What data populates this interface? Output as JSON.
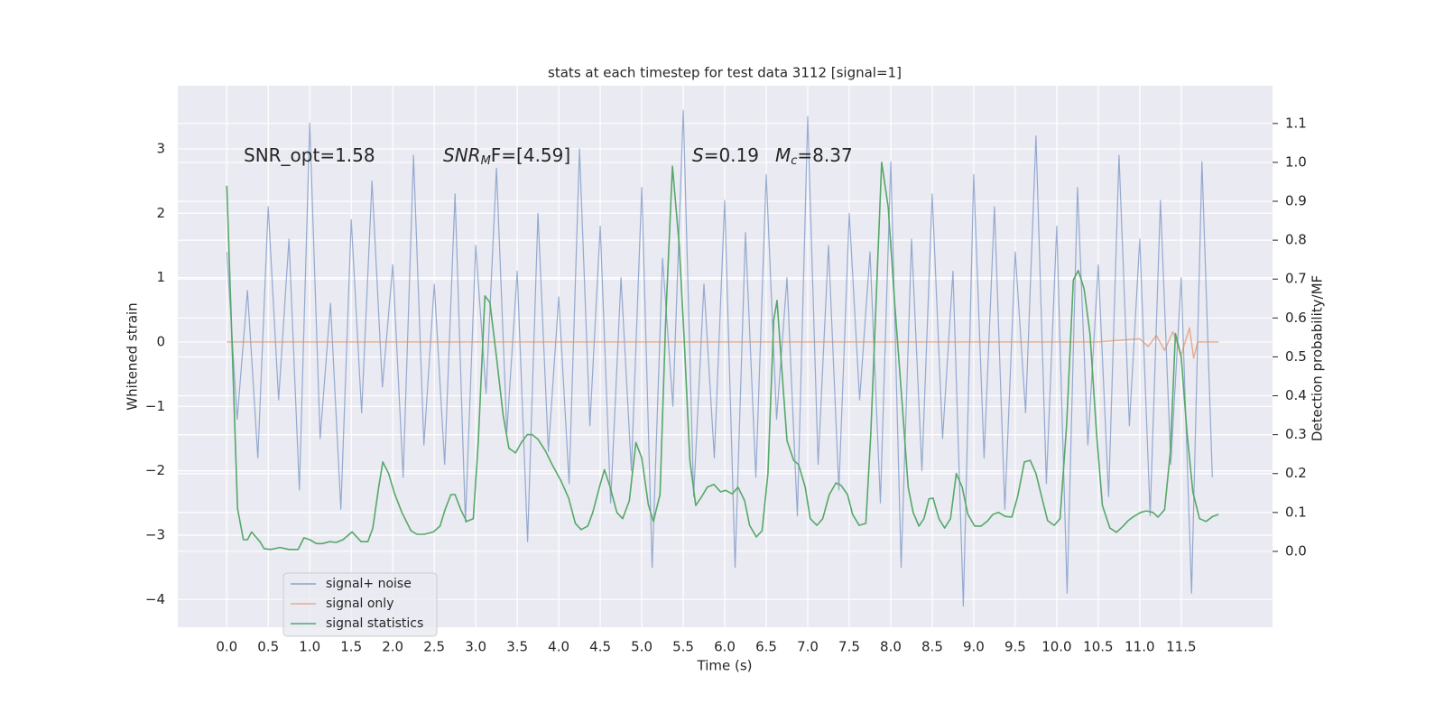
{
  "chart_data": {
    "type": "line",
    "title": "stats at each timestep for test data 3112 [signal=1]",
    "xlabel": "Time (s)",
    "ylabel": "Whitened strain",
    "y2label": "Detection probability/MF",
    "annotations": [
      [
        "SNR_opt=1.58"
      ],
      [
        "SNR",
        "M",
        "F=[4.59]"
      ],
      [
        "S",
        "=0.19"
      ],
      [
        "M",
        "c",
        "=8.37"
      ]
    ],
    "xlim": [
      -0.59,
      12.6
    ],
    "ylim": [
      -4.43,
      3.98
    ],
    "y2lim": [
      -0.195,
      1.197
    ],
    "xticks": [
      {
        "value": 0,
        "label": "0.0"
      },
      0.5,
      {
        "value": 1,
        "label": "1.0"
      },
      1.5,
      {
        "value": 2,
        "label": "2.0"
      },
      2.5,
      {
        "value": 3,
        "label": "3.0"
      },
      3.5,
      {
        "value": 4,
        "label": "4.0"
      },
      4.5,
      {
        "value": 5,
        "label": "5.0"
      },
      5.5,
      {
        "value": 6,
        "label": "6.0"
      },
      6.5,
      {
        "value": 7,
        "label": "7.0"
      },
      7.5,
      {
        "value": 8,
        "label": "8.0"
      },
      8.5,
      {
        "value": 9,
        "label": "9.0"
      },
      9.5,
      {
        "value": 10,
        "label": "10.0"
      },
      10.5,
      {
        "value": 11,
        "label": "11.0"
      },
      11.5
    ],
    "yticks": [
      {
        "value": -4,
        "label": "−4"
      },
      {
        "value": -3,
        "label": "−3"
      },
      {
        "value": -2,
        "label": "−2"
      },
      {
        "value": -1,
        "label": "−1"
      },
      0,
      1,
      2,
      3
    ],
    "y2ticks": [
      {
        "value": 0,
        "label": "0.0"
      },
      0.1,
      0.2,
      0.3,
      0.4,
      0.5,
      0.6,
      0.7,
      0.8,
      0.9,
      {
        "value": 1,
        "label": "1.0"
      },
      1.1
    ],
    "grid": true,
    "legend": "lower left",
    "series": [
      {
        "name": "signal+ noise",
        "color": "#4c72b0",
        "x": [
          0,
          0.125,
          0.25,
          0.375,
          0.5,
          0.625,
          0.75,
          0.875,
          1,
          1.125,
          1.25,
          1.375,
          1.5,
          1.625,
          1.75,
          1.875,
          2,
          2.125,
          2.25,
          2.375,
          2.5,
          2.625,
          2.75,
          2.875,
          3,
          3.125,
          3.25,
          3.375,
          3.5,
          3.625,
          3.75,
          3.875,
          4,
          4.125,
          4.25,
          4.375,
          4.5,
          4.625,
          4.75,
          4.875,
          5,
          5.125,
          5.25,
          5.375,
          5.5,
          5.625,
          5.75,
          5.875,
          6,
          6.125,
          6.25,
          6.375,
          6.5,
          6.625,
          6.75,
          6.875,
          7,
          7.125,
          7.25,
          7.375,
          7.5,
          7.625,
          7.75,
          7.875,
          8,
          8.125,
          8.25,
          8.375,
          8.5,
          8.625,
          8.75,
          8.875,
          9,
          9.125,
          9.25,
          9.375,
          9.5,
          9.625,
          9.75,
          9.875,
          10,
          10.125,
          10.25,
          10.375,
          10.5,
          10.625,
          10.75,
          10.875,
          11,
          11.125,
          11.25,
          11.375,
          11.5,
          11.625,
          11.75,
          11.875
        ],
        "values": [
          1.4,
          -1.2,
          0.8,
          -1.8,
          2.1,
          -0.9,
          1.6,
          -2.3,
          3.4,
          -1.5,
          0.6,
          -2.6,
          1.9,
          -1.1,
          2.5,
          -0.7,
          1.2,
          -2.1,
          2.9,
          -1.6,
          0.9,
          -1.9,
          2.3,
          -2.8,
          1.5,
          -0.8,
          2.7,
          -1.4,
          1.1,
          -3.1,
          2.0,
          -1.7,
          0.7,
          -2.2,
          3.0,
          -1.3,
          1.8,
          -2.5,
          1.0,
          -2.0,
          2.4,
          -3.5,
          1.3,
          -1.0,
          3.6,
          -2.4,
          0.9,
          -1.8,
          2.2,
          -3.5,
          1.7,
          -2.1,
          2.6,
          -1.2,
          1.0,
          -2.7,
          3.5,
          -1.9,
          1.5,
          -2.3,
          2.0,
          -0.9,
          1.4,
          -2.5,
          2.8,
          -3.5,
          1.6,
          -2.0,
          2.3,
          -1.5,
          1.1,
          -4.1,
          2.6,
          -1.8,
          2.1,
          -2.6,
          1.4,
          -1.1,
          3.2,
          -2.2,
          1.8,
          -3.9,
          2.4,
          -1.6,
          1.2,
          -2.4,
          2.9,
          -1.3,
          1.6,
          -2.7,
          2.2,
          -1.9,
          1.0,
          -3.9,
          2.8,
          -2.1
        ]
      },
      {
        "name": "signal only",
        "color": "#dd8452",
        "x": [
          0,
          10.5,
          11.0,
          11.1,
          11.2,
          11.3,
          11.4,
          11.5,
          11.6,
          11.65,
          11.7,
          11.95
        ],
        "values": [
          0,
          0,
          0.05,
          -0.07,
          0.1,
          -0.13,
          0.16,
          -0.2,
          0.22,
          -0.25,
          0,
          0
        ]
      },
      {
        "name": "signal statistics",
        "color": "#55a868",
        "axis": "y2",
        "x": [
          0,
          0.13,
          0.2,
          0.25,
          0.3,
          0.4,
          0.45,
          0.53,
          0.64,
          0.75,
          0.86,
          0.93,
          1.0,
          1.08,
          1.15,
          1.24,
          1.32,
          1.4,
          1.51,
          1.62,
          1.7,
          1.76,
          1.83,
          1.88,
          1.95,
          2.02,
          2.11,
          2.22,
          2.29,
          2.38,
          2.49,
          2.57,
          2.63,
          2.7,
          2.75,
          2.82,
          2.89,
          2.97,
          3.03,
          3.11,
          3.17,
          3.25,
          3.33,
          3.4,
          3.48,
          3.55,
          3.62,
          3.68,
          3.75,
          3.84,
          3.92,
          4.03,
          4.12,
          4.2,
          4.27,
          4.35,
          4.41,
          4.49,
          4.55,
          4.62,
          4.7,
          4.77,
          4.85,
          4.93,
          5.0,
          5.08,
          5.14,
          5.22,
          5.29,
          5.37,
          5.45,
          5.51,
          5.58,
          5.65,
          5.72,
          5.79,
          5.87,
          5.95,
          6.01,
          6.09,
          6.16,
          6.24,
          6.3,
          6.38,
          6.45,
          6.52,
          6.59,
          6.63,
          6.68,
          6.75,
          6.83,
          6.89,
          6.97,
          7.03,
          7.11,
          7.18,
          7.26,
          7.34,
          7.4,
          7.48,
          7.54,
          7.62,
          7.7,
          7.76,
          7.89,
          7.97,
          8.05,
          8.14,
          8.21,
          8.27,
          8.34,
          8.4,
          8.46,
          8.51,
          8.58,
          8.65,
          8.72,
          8.79,
          8.86,
          8.93,
          9.01,
          9.09,
          9.17,
          9.23,
          9.3,
          9.38,
          9.46,
          9.53,
          9.61,
          9.68,
          9.75,
          9.83,
          9.89,
          9.97,
          10.04,
          10.12,
          10.2,
          10.26,
          10.33,
          10.4,
          10.48,
          10.55,
          10.64,
          10.72,
          10.8,
          10.86,
          10.93,
          11.01,
          11.08,
          11.16,
          11.22,
          11.3,
          11.37,
          11.43,
          11.5,
          11.57,
          11.64,
          11.72,
          11.8,
          11.88,
          11.95
        ],
        "values": [
          0.94,
          0.11,
          0.03,
          0.03,
          0.05,
          0.025,
          0.007,
          0.005,
          0.01,
          0.005,
          0.005,
          0.035,
          0.03,
          0.02,
          0.02,
          0.025,
          0.023,
          0.03,
          0.05,
          0.025,
          0.025,
          0.06,
          0.165,
          0.23,
          0.2,
          0.15,
          0.1,
          0.053,
          0.044,
          0.044,
          0.05,
          0.065,
          0.107,
          0.146,
          0.146,
          0.107,
          0.077,
          0.084,
          0.28,
          0.657,
          0.64,
          0.5,
          0.35,
          0.265,
          0.253,
          0.28,
          0.3,
          0.3,
          0.288,
          0.258,
          0.223,
          0.18,
          0.137,
          0.072,
          0.056,
          0.065,
          0.1,
          0.165,
          0.21,
          0.165,
          0.1,
          0.084,
          0.13,
          0.28,
          0.24,
          0.12,
          0.077,
          0.146,
          0.6,
          0.99,
          0.79,
          0.55,
          0.234,
          0.118,
          0.14,
          0.165,
          0.172,
          0.153,
          0.157,
          0.148,
          0.165,
          0.13,
          0.067,
          0.037,
          0.053,
          0.2,
          0.594,
          0.645,
          0.49,
          0.285,
          0.234,
          0.223,
          0.165,
          0.084,
          0.067,
          0.084,
          0.146,
          0.176,
          0.17,
          0.146,
          0.095,
          0.067,
          0.072,
          0.304,
          1.0,
          0.884,
          0.63,
          0.374,
          0.165,
          0.1,
          0.065,
          0.084,
          0.135,
          0.137,
          0.084,
          0.06,
          0.084,
          0.2,
          0.165,
          0.095,
          0.065,
          0.065,
          0.079,
          0.095,
          0.1,
          0.09,
          0.088,
          0.142,
          0.23,
          0.234,
          0.2,
          0.13,
          0.079,
          0.067,
          0.084,
          0.327,
          0.698,
          0.722,
          0.675,
          0.56,
          0.304,
          0.118,
          0.06,
          0.049,
          0.065,
          0.079,
          0.09,
          0.1,
          0.104,
          0.1,
          0.088,
          0.107,
          0.258,
          0.56,
          0.5,
          0.304,
          0.153,
          0.084,
          0.077,
          0.09,
          0.095
        ]
      }
    ]
  }
}
